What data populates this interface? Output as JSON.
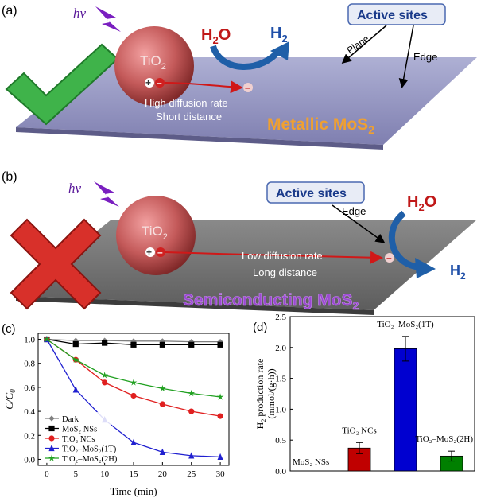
{
  "panel_a": {
    "label": "(a)",
    "hv": "hν",
    "tio2": "TiO",
    "tio2_sub": "2",
    "h2o": "H",
    "h2o_sub": "2",
    "h2o_tail": "O",
    "h2": "H",
    "h2_sub": "2",
    "active_sites": "Active sites",
    "plane": "Plane",
    "edge": "Edge",
    "caption_line1": "High diffusion rate",
    "caption_line2": "Short distance",
    "material": "Metallic MoS",
    "material_sub": "2",
    "electron": "–",
    "pair_plus": "+",
    "pair_minus": "–",
    "mark": "check",
    "colors": {
      "check": "#3fb34a",
      "material": "#f0a030",
      "sphere": "#b84a4a",
      "plane": "#8e8cb8"
    }
  },
  "panel_b": {
    "label": "(b)",
    "hv": "hν",
    "tio2": "TiO",
    "tio2_sub": "2",
    "h2o": "H",
    "h2o_sub": "2",
    "h2o_tail": "O",
    "h2": "H",
    "h2_sub": "2",
    "active_sites": "Active sites",
    "edge": "Edge",
    "caption_line1": "Low diffusion rate",
    "caption_line2": "Long distance",
    "material": "Semiconducting MoS",
    "material_sub": "2",
    "electron": "–",
    "pair_plus": "+",
    "pair_minus": "–",
    "mark": "cross",
    "colors": {
      "cross": "#d8302a",
      "material": "#9040c0",
      "sphere": "#b84a4a",
      "plane": "#707070"
    }
  },
  "chart_data": [
    {
      "panel_label": "(c)",
      "type": "line",
      "xlabel": "Time (min)",
      "ylabel": "C/C",
      "ylabel_sub": "0",
      "x": [
        0,
        5,
        10,
        15,
        20,
        25,
        30
      ],
      "xticks": [
        "0",
        "5",
        "10",
        "15",
        "20",
        "25",
        "30"
      ],
      "yticks": [
        "0.0",
        "0.2",
        "0.4",
        "0.6",
        "0.8",
        "1.0"
      ],
      "xlim": [
        -1.5,
        31.5
      ],
      "ylim": [
        -0.05,
        1.05
      ],
      "series": [
        {
          "name": "Dark",
          "legend": "Dark",
          "color": "#808080",
          "marker": "diamond",
          "values": [
            1.0,
            0.99,
            0.99,
            0.985,
            0.985,
            0.98,
            0.98
          ]
        },
        {
          "name": "MoS2 NSs",
          "legend": "MoS₂ NSs",
          "color": "#000000",
          "marker": "square",
          "values": [
            1.0,
            0.96,
            0.97,
            0.955,
            0.955,
            0.955,
            0.955
          ]
        },
        {
          "name": "TiO2 NCs",
          "legend": "TiO₂ NCs",
          "color": "#e02020",
          "marker": "circle",
          "values": [
            1.0,
            0.83,
            0.64,
            0.53,
            0.46,
            0.4,
            0.36
          ]
        },
        {
          "name": "TiO2-MoS2(1T)",
          "legend": "TiO₂–MoS₂(1T)",
          "color": "#2020d0",
          "marker": "triangle",
          "values": [
            1.0,
            0.58,
            0.33,
            0.14,
            0.06,
            0.03,
            0.02
          ]
        },
        {
          "name": "TiO2-MoS2(2H)",
          "legend": "TiO₂–MoS₂(2H)",
          "color": "#20a020",
          "marker": "star",
          "values": [
            1.0,
            0.83,
            0.7,
            0.64,
            0.59,
            0.55,
            0.52
          ]
        }
      ]
    },
    {
      "panel_label": "(d)",
      "type": "bar",
      "ylabel_line1": "H",
      "ylabel_line1_sub": "2",
      "ylabel_line1_tail": " production rate",
      "ylabel_line2": "(mmol/(g·h))",
      "yticks": [
        "0.0",
        "0.5",
        "1.0",
        "1.5",
        "2.0",
        "2.5"
      ],
      "ylim": [
        0,
        2.5
      ],
      "categories": [
        "MoS₂ NSs",
        "TiO₂ NCs",
        "TiO₂–MoS₂(1T)",
        "TiO₂–MoS₂(2H)"
      ],
      "values": [
        0.0,
        0.37,
        1.98,
        0.24
      ],
      "errors": [
        0.0,
        0.09,
        0.2,
        0.08
      ],
      "colors": [
        "#c00000",
        "#c00000",
        "#0000d0",
        "#008000"
      ]
    }
  ]
}
